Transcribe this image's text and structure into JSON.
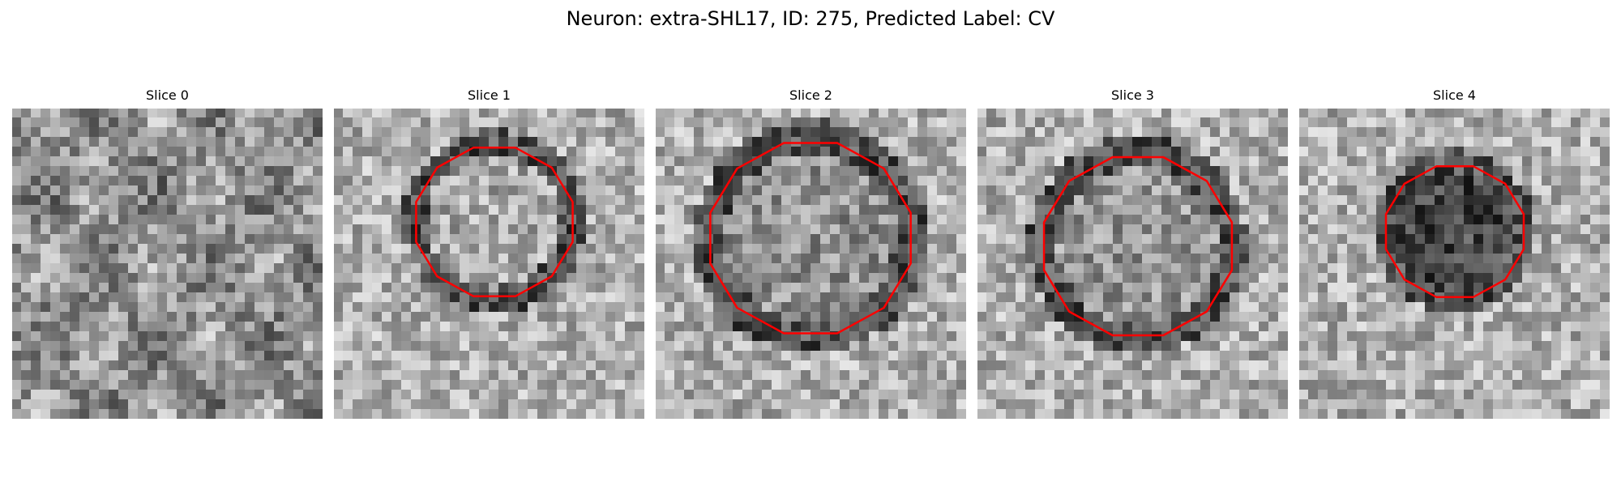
{
  "figure": {
    "title": "Neuron: extra-SHL17, ID: 275, Predicted Label: CV"
  },
  "colors": {
    "contour": "#ff0000",
    "background": "#ffffff"
  },
  "slices": [
    {
      "label": "Slice 0",
      "has_contour": false
    },
    {
      "label": "Slice 1",
      "has_contour": true
    },
    {
      "label": "Slice 2",
      "has_contour": true
    },
    {
      "label": "Slice 3",
      "has_contour": true
    },
    {
      "label": "Slice 4",
      "has_contour": true
    }
  ]
}
